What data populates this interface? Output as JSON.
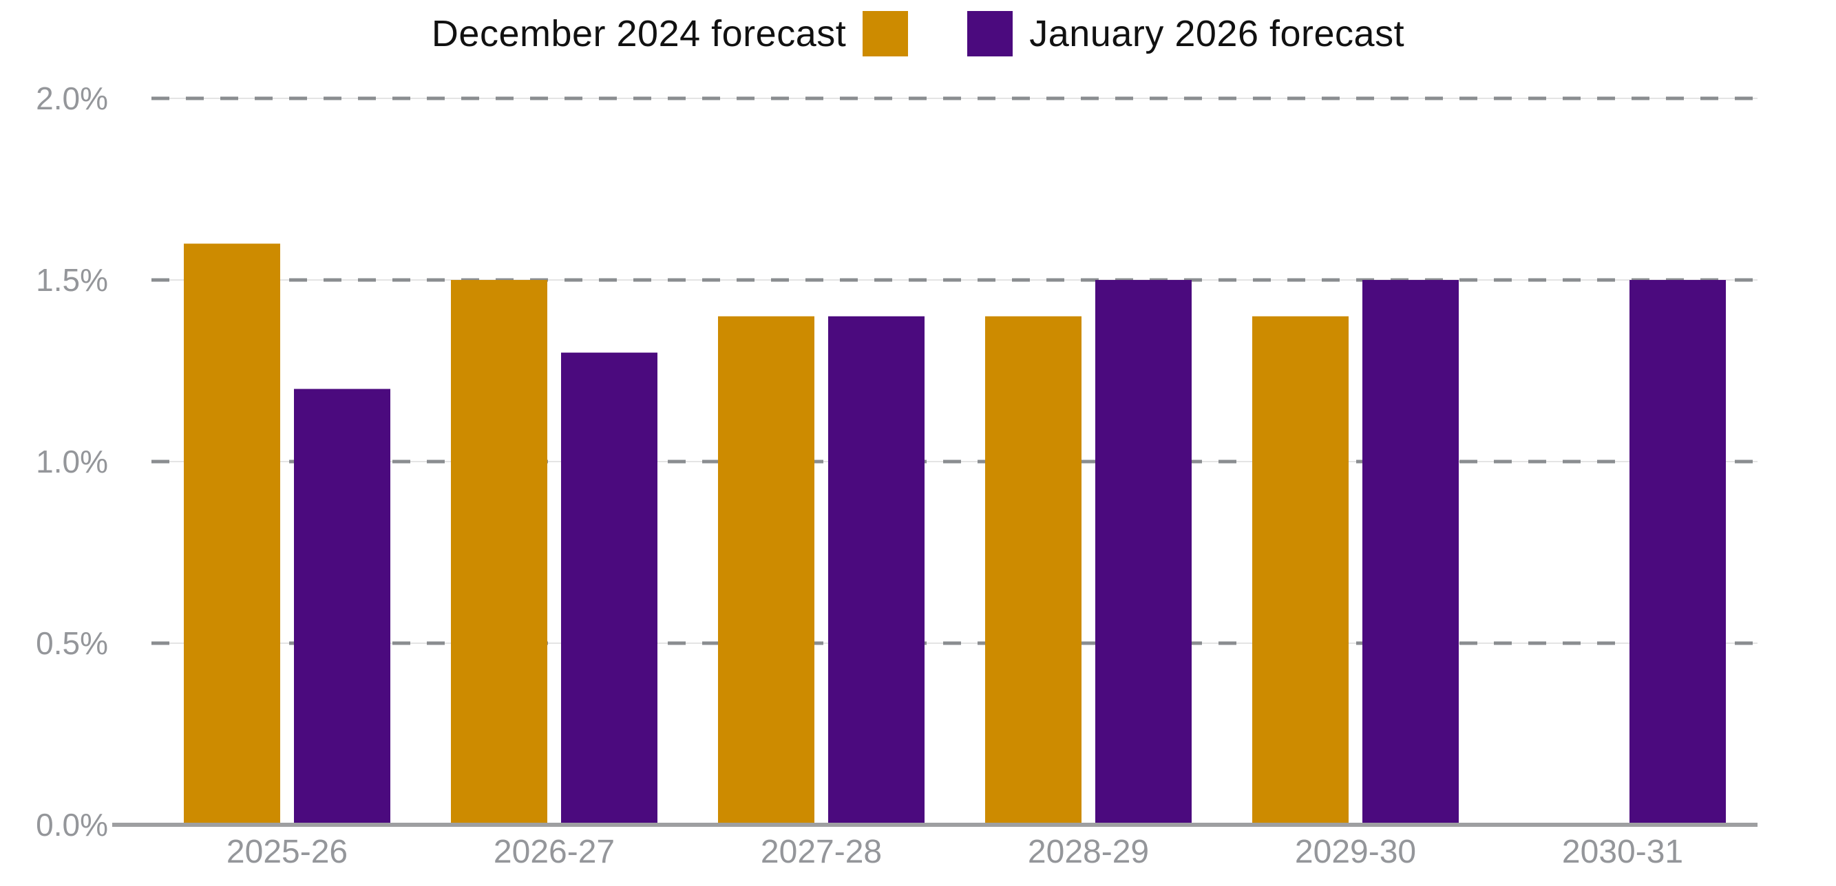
{
  "legend": {
    "items": [
      {
        "label": "December 2024 forecast",
        "color": "#CD8B00"
      },
      {
        "label": "January 2026 forecast",
        "color": "#4B0A7E"
      }
    ]
  },
  "chart_data": {
    "type": "bar",
    "title": "",
    "xlabel": "",
    "ylabel": "",
    "unit": "%",
    "categories": [
      "2025-26",
      "2026-27",
      "2027-28",
      "2028-29",
      "2029-30",
      "2030-31"
    ],
    "series": [
      {
        "name": "December 2024 forecast",
        "color": "#CD8B00",
        "values": [
          1.6,
          1.5,
          1.4,
          1.4,
          1.4,
          null
        ]
      },
      {
        "name": "January 2026 forecast",
        "color": "#4B0A7E",
        "values": [
          1.2,
          1.3,
          1.4,
          1.5,
          1.5,
          1.5
        ]
      }
    ],
    "ylim": [
      0.0,
      2.0
    ],
    "y_tick_step": 0.5,
    "y_ticks": [
      "0.0%",
      "0.5%",
      "1.0%",
      "1.5%",
      "2.0%"
    ],
    "grid": "horizontal-dashed",
    "legend_position": "top-center"
  },
  "colors": {
    "background": "#ffffff",
    "axis_line": "#9E9FA1",
    "tick_label": "#94969A",
    "grid_dash": "#8A8D90",
    "grid_faint": "#E4E4E4",
    "legend_text": "#111111"
  }
}
